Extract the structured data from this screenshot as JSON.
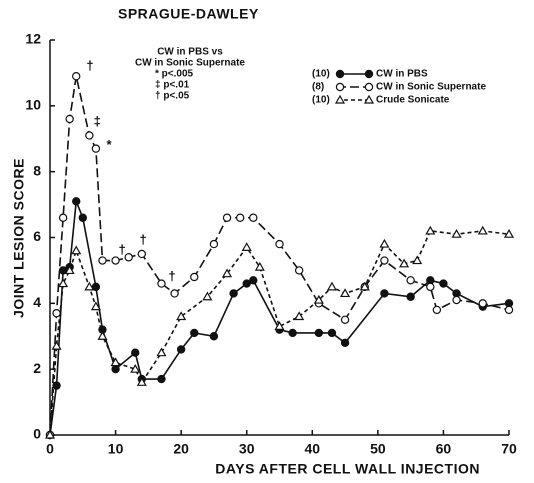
{
  "chart_data": {
    "type": "line",
    "title": "SPRAGUE-DAWLEY",
    "xlabel": "DAYS AFTER CELL WALL INJECTION",
    "ylabel": "JOINT LESION SCORE",
    "xlim": [
      0,
      70
    ],
    "xticks": [
      0,
      10,
      20,
      30,
      40,
      50,
      60,
      70
    ],
    "ylim": [
      0,
      12
    ],
    "yticks": [
      0,
      2,
      4,
      6,
      8,
      10,
      12
    ],
    "stats_legend": [
      "CW in PBS vs",
      "CW in Sonic Supernate",
      "* p<.005",
      "‡ p<.01",
      "† p<.05"
    ],
    "annotations": [
      {
        "text": "*",
        "x": 9,
        "y": 8.8
      },
      {
        "text": "‡",
        "x": 7.2,
        "y": 9.5
      },
      {
        "text": "†",
        "x": 6.1,
        "y": 11.2
      },
      {
        "text": "†",
        "x": 11,
        "y": 5.6
      },
      {
        "text": "†",
        "x": 14.2,
        "y": 5.9
      },
      {
        "text": "†",
        "x": 18.6,
        "y": 4.8
      }
    ],
    "series": [
      {
        "name": "CW in PBS",
        "n_label": "(10)",
        "color": "#111111",
        "marker": "filled-circle",
        "dash": "solid",
        "x": [
          0,
          1,
          2,
          3,
          4,
          5,
          7,
          8,
          10,
          13,
          14,
          17,
          20,
          22,
          25,
          28,
          30,
          31,
          35,
          37,
          41,
          43,
          45,
          51,
          55,
          58,
          60,
          62,
          66,
          70
        ],
        "values": [
          0,
          1.5,
          5,
          5.1,
          7.1,
          6.6,
          4.5,
          3.2,
          2.0,
          2.5,
          1.7,
          1.7,
          2.6,
          3.1,
          3.0,
          4.3,
          4.6,
          4.7,
          3.2,
          3.1,
          3.1,
          3.1,
          2.8,
          4.3,
          4.2,
          4.7,
          4.6,
          4.3,
          3.9,
          4.0
        ]
      },
      {
        "name": "CW in Sonic Supernate",
        "n_label": "(8)",
        "color": "#111111",
        "marker": "open-circle",
        "dash": "long",
        "x": [
          0,
          1,
          2,
          3,
          4,
          6,
          7,
          8,
          10,
          12,
          14,
          17,
          19,
          22,
          25,
          27,
          29,
          31,
          35,
          38,
          41,
          45,
          48,
          51,
          55,
          58,
          59,
          62,
          66,
          70
        ],
        "values": [
          0,
          3.7,
          6.6,
          9.6,
          10.9,
          9.1,
          8.7,
          5.3,
          5.3,
          5.4,
          5.5,
          4.6,
          4.3,
          4.8,
          5.8,
          6.6,
          6.6,
          6.6,
          5.8,
          5.0,
          4.0,
          3.5,
          4.5,
          5.3,
          4.7,
          4.5,
          3.8,
          4.1,
          4.0,
          3.8
        ]
      },
      {
        "name": "Crude Sonicate",
        "n_label": "(10)",
        "color": "#111111",
        "marker": "open-triangle",
        "dash": "short",
        "x": [
          0,
          1,
          2,
          3,
          4,
          6,
          7,
          8,
          10,
          13,
          14,
          17,
          20,
          24,
          27,
          30,
          32,
          35,
          38,
          41,
          43,
          45,
          48,
          51,
          54,
          56,
          58,
          62,
          66,
          70
        ],
        "values": [
          0,
          2.7,
          4.6,
          5.0,
          5.6,
          4.5,
          3.9,
          3.0,
          2.2,
          2.0,
          1.6,
          2.5,
          3.6,
          4.2,
          4.9,
          5.7,
          5.1,
          3.3,
          3.6,
          4.1,
          4.5,
          4.3,
          4.5,
          5.8,
          5.2,
          5.3,
          6.2,
          6.1,
          6.2,
          6.1
        ]
      }
    ]
  }
}
